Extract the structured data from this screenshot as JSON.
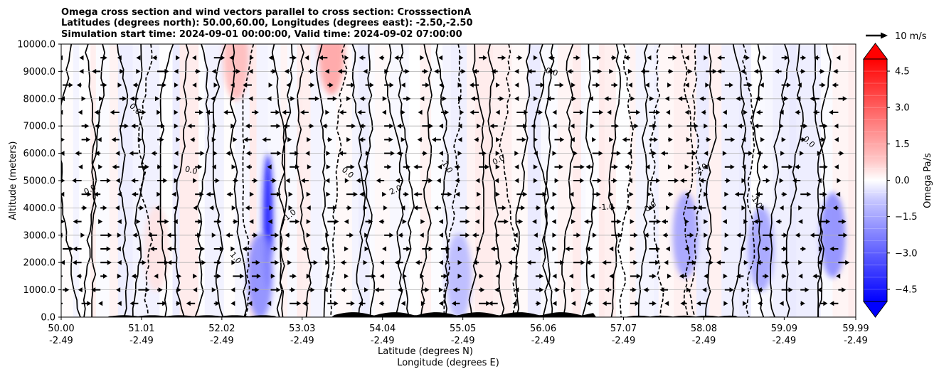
{
  "chart_data": {
    "type": "contourf",
    "title_lines": [
      "Omega cross section and wind vectors parallel to cross section: CrosssectionA",
      "Latitudes (degrees north): 50.00,60.00, Longitudes (degrees east): -2.50,-2.50",
      "Simulation start time: 2024-09-01 00:00:00, Valid time: 2024-09-02 07:00:00"
    ],
    "xlabel_lines": [
      "Latitude (degrees N)",
      "Longitude (degrees E)"
    ],
    "ylabel": "Altitude (meters)",
    "xlim": [
      50.0,
      59.99
    ],
    "ylim": [
      0,
      10000
    ],
    "x_ticks": [
      {
        "lat": "50.00",
        "lon": "-2.49",
        "v": 50.0
      },
      {
        "lat": "51.01",
        "lon": "-2.49",
        "v": 51.01
      },
      {
        "lat": "52.02",
        "lon": "-2.49",
        "v": 52.02
      },
      {
        "lat": "53.03",
        "lon": "-2.49",
        "v": 53.03
      },
      {
        "lat": "54.04",
        "lon": "-2.49",
        "v": 54.04
      },
      {
        "lat": "55.05",
        "lon": "-2.49",
        "v": 55.05
      },
      {
        "lat": "56.06",
        "lon": "-2.49",
        "v": 56.06
      },
      {
        "lat": "57.07",
        "lon": "-2.49",
        "v": 57.07
      },
      {
        "lat": "58.08",
        "lon": "-2.49",
        "v": 58.08
      },
      {
        "lat": "59.09",
        "lon": "-2.49",
        "v": 59.09
      },
      {
        "lat": "59.99",
        "lon": "-2.49",
        "v": 59.99
      }
    ],
    "y_ticks": [
      "0.0",
      "1000.0",
      "2000.0",
      "3000.0",
      "4000.0",
      "5000.0",
      "6000.0",
      "7000.0",
      "8000.0",
      "9000.0",
      "10000.0"
    ],
    "grid": "horizontal",
    "colorbar": {
      "label": "Omega Pa/s",
      "range": [
        -5.0,
        5.0
      ],
      "extend": "both",
      "ticks": [
        "4.5",
        "3.0",
        "1.5",
        "0.0",
        "−1.5",
        "−3.0",
        "−4.5"
      ],
      "tick_values": [
        4.5,
        3.0,
        1.5,
        0.0,
        -1.5,
        -3.0,
        -4.5
      ],
      "neg_color": "#0000ff",
      "pos_color": "#ff0000"
    },
    "quiver_key": {
      "label": "10 m/s",
      "speed": 10
    },
    "vector_levels": [
      500,
      1000,
      1500,
      2000,
      2500,
      3000,
      3500,
      4000,
      4500,
      5000,
      5500,
      6000,
      6500,
      7000,
      7500,
      8000,
      8500,
      9000,
      9500
    ],
    "omega_features": [
      {
        "lat": 52.6,
        "alt": 3500,
        "value": -5.0
      },
      {
        "lat": 52.5,
        "alt": 1500,
        "value": -2.5
      },
      {
        "lat": 53.4,
        "alt": 9700,
        "value": 2.0
      },
      {
        "lat": 55.0,
        "alt": 1500,
        "value": -1.5
      },
      {
        "lat": 57.85,
        "alt": 3000,
        "value": -2.0
      },
      {
        "lat": 59.7,
        "alt": 3000,
        "value": -2.5
      },
      {
        "lat": 58.8,
        "alt": 2500,
        "value": -2.0
      },
      {
        "lat": 52.2,
        "alt": 9500,
        "value": 1.5
      },
      {
        "lat": 51.2,
        "alt": 2500,
        "value": 0.6
      }
    ],
    "contour_labels": [
      "0.0",
      "0.0",
      "0.0",
      "1.0",
      "-1.0",
      "0.0",
      "2.0",
      "-1.0",
      "0.0",
      "0.0",
      "-1.0",
      "0.0",
      "-2.0",
      "-1.0",
      "0.0"
    ]
  }
}
